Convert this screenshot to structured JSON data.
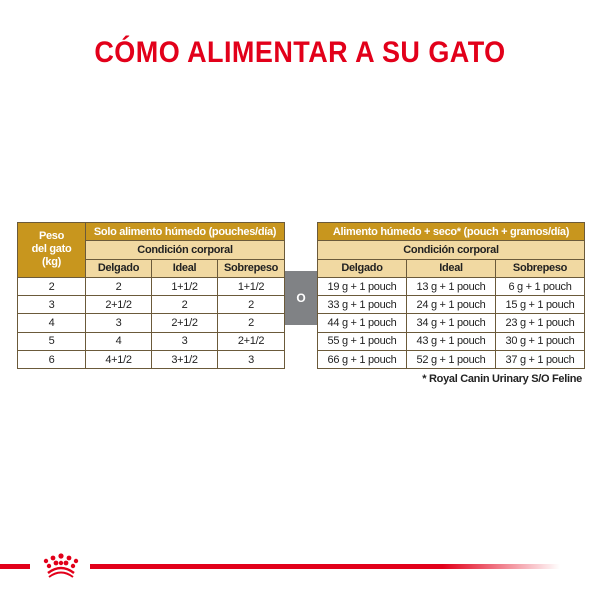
{
  "title": "CÓMO ALIMENTAR A SU GATO",
  "left_table": {
    "weight_header": [
      "Peso",
      "del gato",
      "(kg)"
    ],
    "group_header": "Solo alimento húmedo (pouches/día)",
    "subheader": "Condición corporal",
    "columns": [
      "Delgado",
      "Ideal",
      "Sobrepeso"
    ],
    "rows": [
      [
        "2",
        "2",
        "1+1/2",
        "1+1/2"
      ],
      [
        "3",
        "2+1/2",
        "2",
        "2"
      ],
      [
        "4",
        "3",
        "2+1/2",
        "2"
      ],
      [
        "5",
        "4",
        "3",
        "2+1/2"
      ],
      [
        "6",
        "4+1/2",
        "3+1/2",
        "3"
      ]
    ]
  },
  "or_label": "O",
  "right_table": {
    "group_header": "Alimento húmedo + seco* (pouch + gramos/día)",
    "subheader": "Condición corporal",
    "columns": [
      "Delgado",
      "Ideal",
      "Sobrepeso"
    ],
    "rows": [
      [
        "19 g + 1 pouch",
        "13 g + 1 pouch",
        "6 g + 1 pouch"
      ],
      [
        "33 g + 1 pouch",
        "24 g + 1 pouch",
        "15 g + 1 pouch"
      ],
      [
        "44 g + 1 pouch",
        "34 g + 1 pouch",
        "23 g + 1 pouch"
      ],
      [
        "55 g + 1 pouch",
        "43 g + 1 pouch",
        "30 g + 1 pouch"
      ],
      [
        "66 g + 1 pouch",
        "52 g + 1 pouch",
        "37 g + 1 pouch"
      ]
    ]
  },
  "footnote": "* Royal Canin Urinary S/O Feline",
  "colors": {
    "brand_red": "#e2001a",
    "header_gold": "#c8961e",
    "header_light": "#f1d9a2",
    "or_gray": "#808285"
  },
  "logo": "royal-canin-crown"
}
